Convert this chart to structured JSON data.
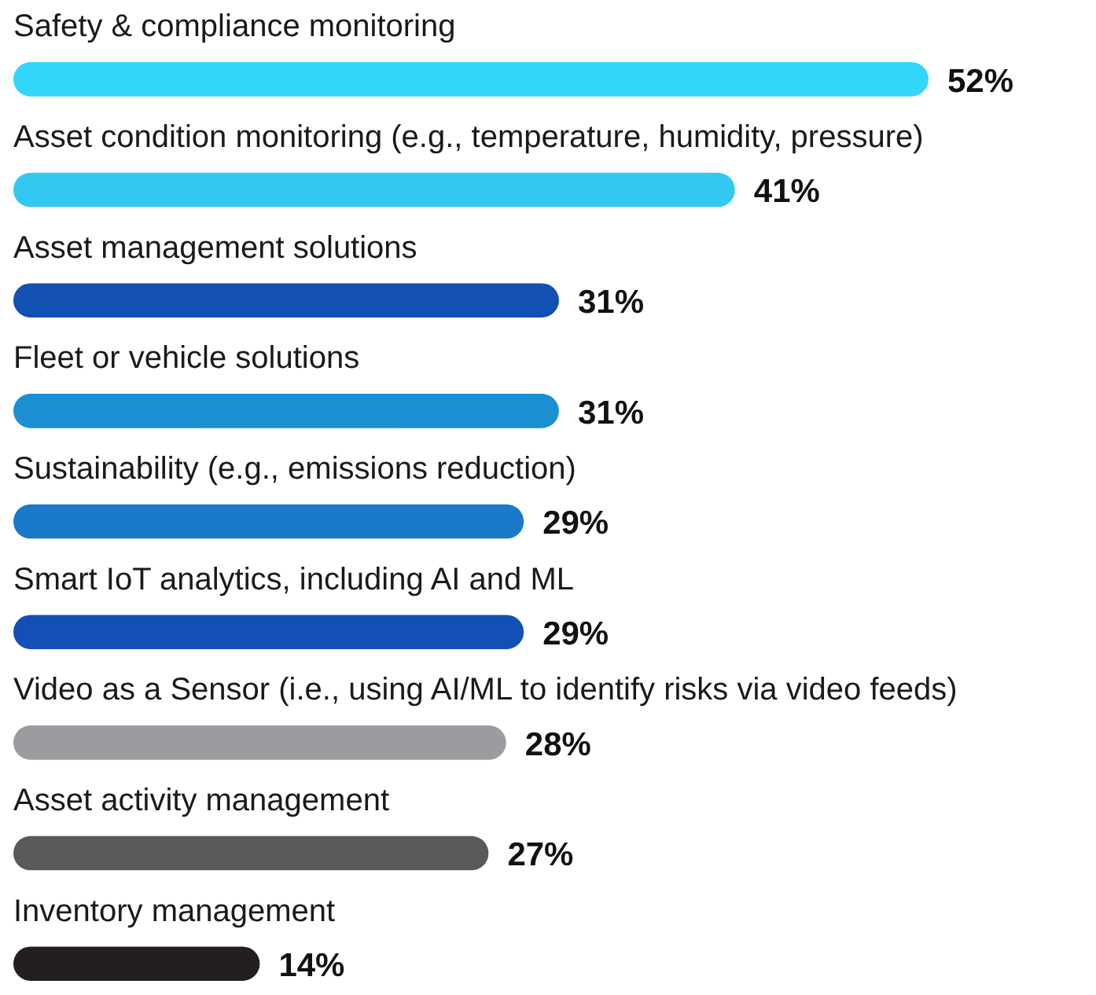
{
  "chart_data": {
    "type": "bar",
    "orientation": "horizontal",
    "categories": [
      "Safety & compliance monitoring",
      "Asset condition monitoring (e.g., temperature, humidity, pressure)",
      "Asset management solutions",
      "Fleet or vehicle solutions",
      "Sustainability (e.g., emissions reduction)",
      "Smart IoT analytics, including AI and ML",
      "Video as a Sensor (i.e., using AI/ML to identify risks via video feeds)",
      "Asset activity management",
      "Inventory management"
    ],
    "values": [
      52,
      41,
      31,
      31,
      29,
      29,
      28,
      27,
      14
    ],
    "value_labels": [
      "52%",
      "41%",
      "31%",
      "31%",
      "29%",
      "29%",
      "28%",
      "27%",
      "14%"
    ],
    "colors": [
      "#33d6fb",
      "#33c8f2",
      "#1250b2",
      "#1a8fd2",
      "#1a79c9",
      "#1350b5",
      "#9b9ca0",
      "#58595b",
      "#231f20"
    ]
  }
}
